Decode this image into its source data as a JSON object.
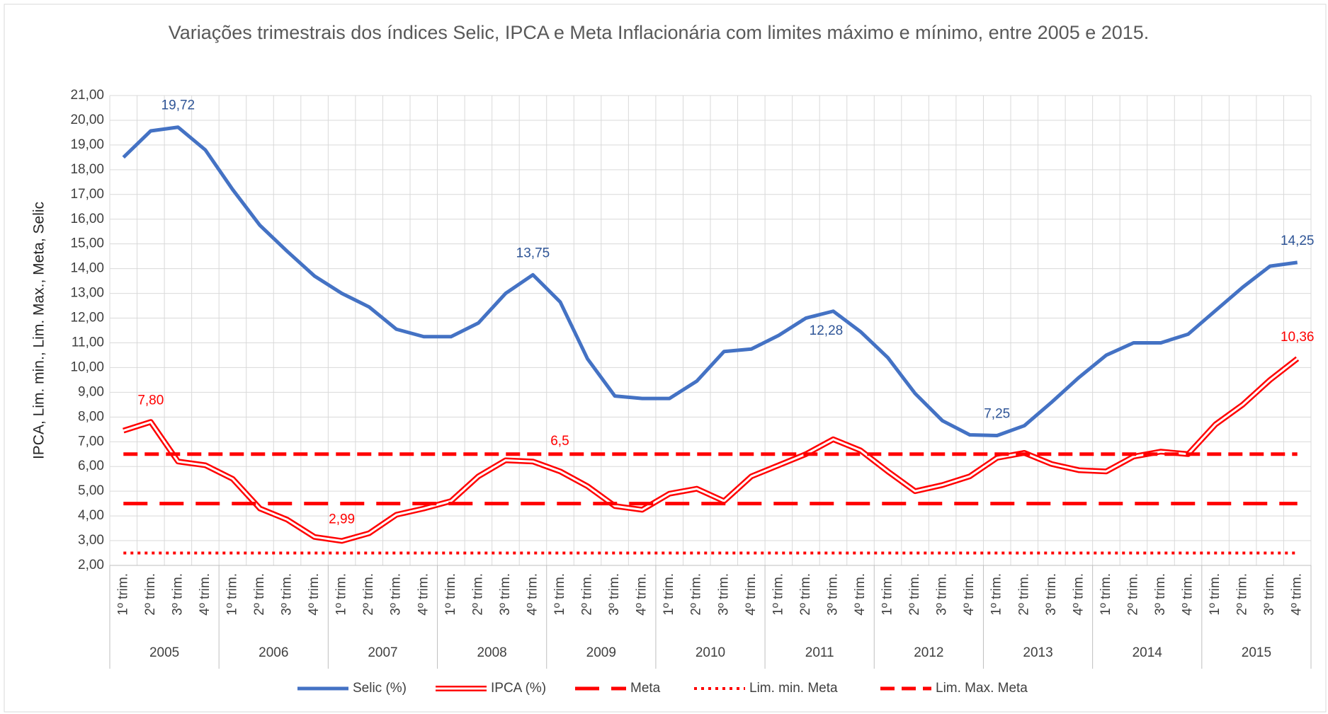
{
  "chart_data": {
    "type": "line",
    "title": "Variações trimestrais dos índices Selic, IPCA e Meta Inflacionária com limites máximo e mínimo, entre 2005 e 2015.",
    "y_label": "IPCA, Lim. min., Lim. Max., Meta, Selic",
    "categories": [
      "1º trim.",
      "2º trim.",
      "3º trim.",
      "4º trim.",
      "1º trim.",
      "2º trim.",
      "3º trim.",
      "4º trim.",
      "1º trim.",
      "2º trim.",
      "3º trim.",
      "4º trim.",
      "1º trim.",
      "2º trim.",
      "3º trim.",
      "4º trim.",
      "1º trim.",
      "2º trim.",
      "3º trim.",
      "4º trim.",
      "1º trim.",
      "2º trim.",
      "3º trim.",
      "4º trim.",
      "1º trim.",
      "2º trim.",
      "3º trim.",
      "4º trim.",
      "1º trim.",
      "2º trim.",
      "3º trim.",
      "4º trim.",
      "1º trim.",
      "2º trim.",
      "3º trim.",
      "4º trim.",
      "1º trim.",
      "2º trim.",
      "3º trim.",
      "4º trim.",
      "1º trim.",
      "2º trim.",
      "3º trim.",
      "4º trim."
    ],
    "category_groups": [
      "2005",
      "2006",
      "2007",
      "2008",
      "2009",
      "2010",
      "2011",
      "2012",
      "2013",
      "2014",
      "2015"
    ],
    "ylim": [
      2,
      21
    ],
    "yticks": [
      {
        "value": 2,
        "label": "2,00"
      },
      {
        "value": 3,
        "label": "3,00"
      },
      {
        "value": 4,
        "label": "4,00"
      },
      {
        "value": 5,
        "label": "5,00"
      },
      {
        "value": 6,
        "label": "6,00"
      },
      {
        "value": 7,
        "label": "7,00"
      },
      {
        "value": 8,
        "label": "8,00"
      },
      {
        "value": 9,
        "label": "9,00"
      },
      {
        "value": 10,
        "label": "10,00"
      },
      {
        "value": 11,
        "label": "11,00"
      },
      {
        "value": 12,
        "label": "12,00"
      },
      {
        "value": 13,
        "label": "13,00"
      },
      {
        "value": 14,
        "label": "14,00"
      },
      {
        "value": 15,
        "label": "15,00"
      },
      {
        "value": 16,
        "label": "16,00"
      },
      {
        "value": 17,
        "label": "17,00"
      },
      {
        "value": 18,
        "label": "18,00"
      },
      {
        "value": 19,
        "label": "19,00"
      },
      {
        "value": 20,
        "label": "20,00"
      },
      {
        "value": 21,
        "label": "21,00"
      }
    ],
    "grid": true,
    "legend": "bottom",
    "series": [
      {
        "name": "Selic (%)",
        "color": "#4472c4",
        "style": "solid",
        "values": [
          18.5,
          19.57,
          19.72,
          18.8,
          17.2,
          15.75,
          14.7,
          13.7,
          13.0,
          12.45,
          11.55,
          11.25,
          11.25,
          11.8,
          13.0,
          13.75,
          12.65,
          10.35,
          8.85,
          8.75,
          8.75,
          9.45,
          10.65,
          10.75,
          11.3,
          12.0,
          12.28,
          11.45,
          10.4,
          8.95,
          7.85,
          7.28,
          7.25,
          7.65,
          8.6,
          9.6,
          10.5,
          11.0,
          11.0,
          11.35,
          12.3,
          13.25,
          14.1,
          14.25
        ],
        "value_labels": [
          null,
          null,
          "19,72",
          null,
          null,
          null,
          null,
          null,
          null,
          null,
          null,
          null,
          null,
          null,
          null,
          "13,75",
          null,
          null,
          null,
          null,
          null,
          null,
          null,
          null,
          null,
          null,
          "12,28",
          null,
          null,
          null,
          null,
          null,
          "7,25",
          null,
          null,
          null,
          null,
          null,
          null,
          null,
          null,
          null,
          null,
          "14,25"
        ]
      },
      {
        "name": "IPCA (%)",
        "color": "#ff0000",
        "style": "double",
        "values": [
          7.45,
          7.8,
          6.2,
          6.05,
          5.5,
          4.3,
          3.85,
          3.15,
          2.99,
          3.3,
          4.05,
          4.3,
          4.6,
          5.6,
          6.25,
          6.2,
          5.8,
          5.2,
          4.4,
          4.25,
          4.9,
          5.1,
          4.6,
          5.6,
          6.05,
          6.5,
          7.1,
          6.65,
          5.8,
          5.0,
          5.25,
          5.6,
          6.35,
          6.55,
          6.1,
          5.85,
          5.8,
          6.4,
          6.6,
          6.5,
          7.7,
          8.5,
          9.5,
          10.36
        ],
        "value_labels": [
          null,
          "7,80",
          null,
          null,
          null,
          null,
          null,
          null,
          "2,99",
          null,
          null,
          null,
          null,
          null,
          null,
          null,
          null,
          null,
          null,
          null,
          null,
          null,
          null,
          null,
          null,
          null,
          null,
          null,
          null,
          null,
          null,
          null,
          null,
          null,
          null,
          null,
          null,
          null,
          null,
          null,
          null,
          null,
          null,
          "10,36"
        ]
      },
      {
        "name": "Meta",
        "color": "#ff0000",
        "style": "longdash",
        "values": [
          4.5,
          4.5,
          4.5,
          4.5,
          4.5,
          4.5,
          4.5,
          4.5,
          4.5,
          4.5,
          4.5,
          4.5,
          4.5,
          4.5,
          4.5,
          4.5,
          4.5,
          4.5,
          4.5,
          4.5,
          4.5,
          4.5,
          4.5,
          4.5,
          4.5,
          4.5,
          4.5,
          4.5,
          4.5,
          4.5,
          4.5,
          4.5,
          4.5,
          4.5,
          4.5,
          4.5,
          4.5,
          4.5,
          4.5,
          4.5,
          4.5,
          4.5,
          4.5,
          4.5
        ]
      },
      {
        "name": "Lim. min. Meta",
        "color": "#ff0000",
        "style": "dotted",
        "values": [
          2.5,
          2.5,
          2.5,
          2.5,
          2.5,
          2.5,
          2.5,
          2.5,
          2.5,
          2.5,
          2.5,
          2.5,
          2.5,
          2.5,
          2.5,
          2.5,
          2.5,
          2.5,
          2.5,
          2.5,
          2.5,
          2.5,
          2.5,
          2.5,
          2.5,
          2.5,
          2.5,
          2.5,
          2.5,
          2.5,
          2.5,
          2.5,
          2.5,
          2.5,
          2.5,
          2.5,
          2.5,
          2.5,
          2.5,
          2.5,
          2.5,
          2.5,
          2.5,
          2.5
        ]
      },
      {
        "name": "Lim. Max. Meta",
        "color": "#ff0000",
        "style": "dashed",
        "values": [
          6.5,
          6.5,
          6.5,
          6.5,
          6.5,
          6.5,
          6.5,
          6.5,
          6.5,
          6.5,
          6.5,
          6.5,
          6.5,
          6.5,
          6.5,
          6.5,
          6.5,
          6.5,
          6.5,
          6.5,
          6.5,
          6.5,
          6.5,
          6.5,
          6.5,
          6.5,
          6.5,
          6.5,
          6.5,
          6.5,
          6.5,
          6.5,
          6.5,
          6.5,
          6.5,
          6.5,
          6.5,
          6.5,
          6.5,
          6.5,
          6.5,
          6.5,
          6.5,
          6.5
        ],
        "value_labels": [
          null,
          null,
          null,
          null,
          null,
          null,
          null,
          null,
          null,
          null,
          null,
          null,
          null,
          null,
          null,
          "6,5",
          null,
          null,
          null,
          null,
          null,
          null,
          null,
          null,
          null,
          null,
          null,
          null,
          null,
          null,
          null,
          null,
          null,
          null,
          null,
          null,
          null,
          null,
          null,
          null,
          null,
          null,
          null,
          null
        ]
      }
    ]
  }
}
